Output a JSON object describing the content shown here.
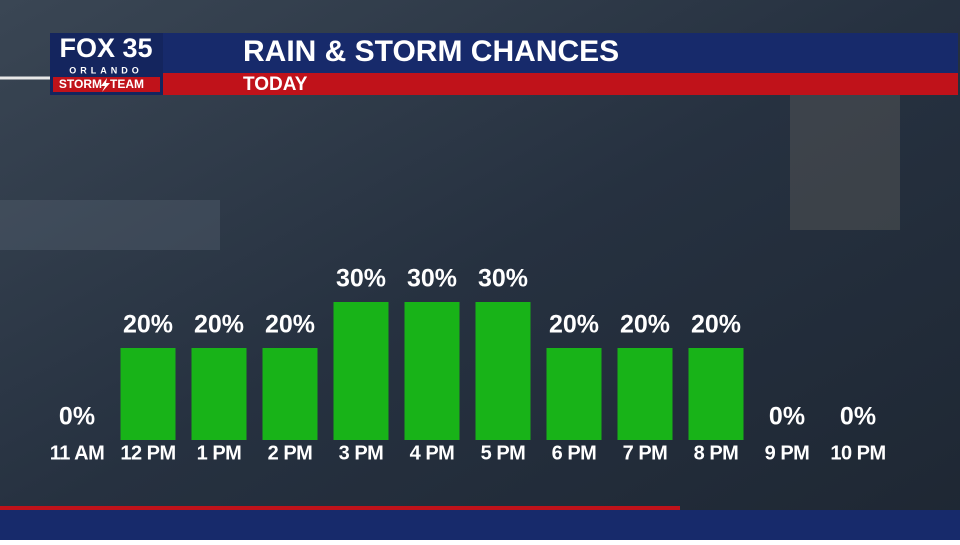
{
  "logo": {
    "name": "FOX 35",
    "city": "ORLANDO",
    "team_left": "STORM",
    "team_right": "TEAM"
  },
  "chart_data": {
    "type": "bar",
    "title": "RAIN & STORM CHANCES",
    "subtitle": "TODAY",
    "categories": [
      "11 AM",
      "12 PM",
      "1 PM",
      "2 PM",
      "3 PM",
      "4 PM",
      "5 PM",
      "6 PM",
      "7 PM",
      "8 PM",
      "9 PM",
      "10 PM"
    ],
    "values": [
      0,
      20,
      20,
      20,
      30,
      30,
      30,
      20,
      20,
      20,
      0,
      0
    ],
    "value_labels": [
      "0%",
      "20%",
      "20%",
      "20%",
      "30%",
      "30%",
      "30%",
      "20%",
      "20%",
      "20%",
      "0%",
      "0%"
    ],
    "color": "#18b318"
  }
}
